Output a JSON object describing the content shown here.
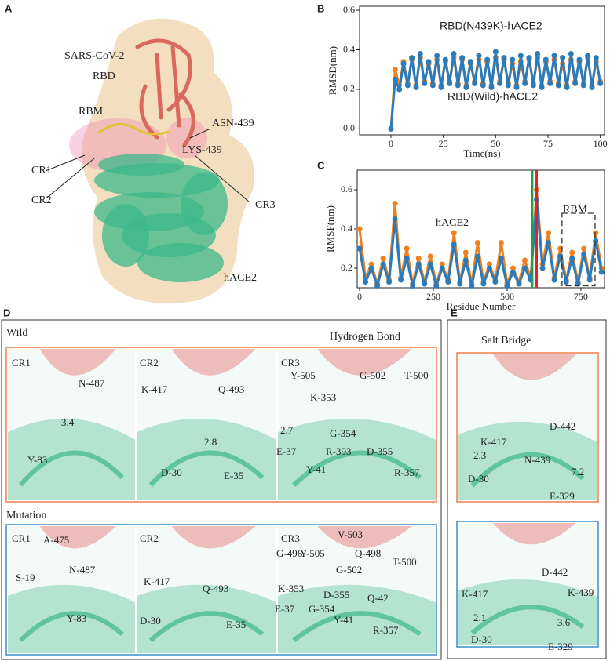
{
  "panel_letters": [
    "A",
    "B",
    "C",
    "D",
    "E"
  ],
  "panel_a": [
    "SARS-CoV-2",
    "RBD",
    "RBM",
    "ASN-439",
    "LYS-439",
    "CR1",
    "CR2",
    "CR3",
    "hACE2"
  ],
  "panel_d": {
    "wild_title": "Wild",
    "bond_title": "Hydrogen Bond",
    "mutation_title": "Mutation",
    "wild": [
      [
        "CR1",
        "N-487",
        "3.4",
        "Y-83"
      ],
      [
        "CR2",
        "K-417",
        "Q-493",
        "2.8",
        "D-30",
        "E-35"
      ],
      [
        "CR3",
        "Y-505",
        "G-502",
        "T-500",
        "K-353",
        "2.7",
        "G-354",
        "E-37",
        "R-393",
        "D-355",
        "Y-41",
        "R-357"
      ]
    ],
    "mutation": [
      [
        "CR1",
        "A-475",
        "N-487",
        "S-19",
        "Y-83"
      ],
      [
        "CR2",
        "K-417",
        "Q-493",
        "D-30",
        "E-35"
      ],
      [
        "CR3",
        "V-503",
        "G-496",
        "Y-505",
        "Q-498",
        "T-500",
        "G-502",
        "K-353",
        "D-355",
        "Q-42",
        "E-37",
        "G-354",
        "Y-41",
        "R-357"
      ]
    ]
  },
  "panel_e": {
    "title": "Salt Bridge",
    "wild": [
      "K-417",
      "D-442",
      "2.3",
      "N-439",
      "7.2",
      "D-30",
      "E-329"
    ],
    "mutation": [
      "D-442",
      "K-417",
      "K-439",
      "2.1",
      "3.6",
      "D-30",
      "E-329"
    ]
  },
  "chart_data": [
    {
      "type": "line",
      "xlabel": "Time(ns)",
      "ylabel": "RMSD(nm)",
      "xlim": [
        -15,
        102
      ],
      "ylim": [
        -0.03,
        0.62
      ],
      "xticks": [
        0,
        25,
        50,
        75,
        100
      ],
      "yticks": [
        {
          "value": 0,
          "label": "0.0"
        },
        0.2,
        0.4,
        0.6
      ],
      "x": [
        0,
        2,
        4,
        6,
        8,
        10,
        12,
        14,
        16,
        18,
        20,
        22,
        24,
        26,
        28,
        30,
        32,
        34,
        36,
        38,
        40,
        42,
        44,
        46,
        48,
        50,
        52,
        54,
        56,
        58,
        60,
        62,
        64,
        66,
        68,
        70,
        72,
        74,
        76,
        78,
        80,
        82,
        84,
        86,
        88,
        90,
        92,
        94,
        96,
        98,
        100
      ],
      "series": [
        {
          "name": "RBD(Wild)-hACE2",
          "color": "#f07f1e",
          "values": [
            0.0,
            0.3,
            0.22,
            0.34,
            0.23,
            0.35,
            0.22,
            0.36,
            0.24,
            0.33,
            0.23,
            0.35,
            0.22,
            0.34,
            0.24,
            0.36,
            0.23,
            0.35,
            0.22,
            0.33,
            0.24,
            0.35,
            0.23,
            0.34,
            0.22,
            0.36,
            0.24,
            0.35,
            0.23,
            0.33,
            0.22,
            0.34,
            0.24,
            0.35,
            0.23,
            0.36,
            0.22,
            0.34,
            0.24,
            0.35,
            0.23,
            0.33,
            0.22,
            0.35,
            0.24,
            0.34,
            0.23,
            0.36,
            0.22,
            0.34,
            0.24
          ]
        },
        {
          "name": "RBD(N439K)-hACE2",
          "color": "#2b7bba",
          "values": [
            0.0,
            0.25,
            0.2,
            0.33,
            0.22,
            0.36,
            0.21,
            0.38,
            0.23,
            0.34,
            0.22,
            0.37,
            0.21,
            0.35,
            0.23,
            0.38,
            0.22,
            0.36,
            0.21,
            0.34,
            0.23,
            0.37,
            0.22,
            0.35,
            0.21,
            0.39,
            0.23,
            0.36,
            0.22,
            0.35,
            0.21,
            0.37,
            0.23,
            0.36,
            0.22,
            0.38,
            0.21,
            0.35,
            0.23,
            0.37,
            0.22,
            0.36,
            0.21,
            0.38,
            0.23,
            0.35,
            0.22,
            0.37,
            0.21,
            0.36,
            0.23
          ]
        }
      ]
    },
    {
      "type": "line",
      "xlabel": "Residue Number",
      "ylabel": "RMSF(nm)",
      "xlim": [
        -8,
        830
      ],
      "ylim": [
        0.1,
        0.7
      ],
      "xticks": [
        0,
        250,
        500,
        750
      ],
      "yticks": [
        0.2,
        0.4,
        0.6
      ],
      "x": [
        0,
        20,
        40,
        60,
        80,
        100,
        120,
        140,
        160,
        180,
        200,
        220,
        240,
        260,
        280,
        300,
        320,
        340,
        360,
        380,
        400,
        420,
        440,
        460,
        480,
        500,
        520,
        540,
        560,
        580,
        600,
        620,
        640,
        660,
        680,
        700,
        720,
        740,
        760,
        780,
        800,
        820
      ],
      "series": [
        {
          "color": "#f07f1e",
          "values": [
            0.4,
            0.15,
            0.22,
            0.12,
            0.25,
            0.14,
            0.53,
            0.15,
            0.3,
            0.12,
            0.25,
            0.13,
            0.26,
            0.12,
            0.22,
            0.14,
            0.38,
            0.13,
            0.28,
            0.12,
            0.33,
            0.13,
            0.22,
            0.14,
            0.33,
            0.12,
            0.2,
            0.13,
            0.24,
            0.15,
            0.6,
            0.22,
            0.38,
            0.15,
            0.3,
            0.14,
            0.28,
            0.13,
            0.3,
            0.15,
            0.38,
            0.2
          ]
        },
        {
          "color": "#2b7bba",
          "values": [
            0.3,
            0.13,
            0.2,
            0.11,
            0.22,
            0.13,
            0.45,
            0.14,
            0.25,
            0.11,
            0.22,
            0.12,
            0.22,
            0.11,
            0.2,
            0.13,
            0.32,
            0.12,
            0.24,
            0.11,
            0.26,
            0.12,
            0.2,
            0.13,
            0.25,
            0.11,
            0.18,
            0.12,
            0.2,
            0.14,
            0.55,
            0.2,
            0.33,
            0.14,
            0.26,
            0.13,
            0.25,
            0.12,
            0.27,
            0.14,
            0.34,
            0.18
          ]
        }
      ],
      "vlines": [
        {
          "x": 585,
          "color": "#22a04a"
        },
        {
          "x": 600,
          "color": "#d62728"
        }
      ],
      "box": {
        "x": [
          686,
          798
        ],
        "y": [
          0.11,
          0.48
        ]
      },
      "annotations": [
        {
          "text": "hACE2",
          "color": "#22a04a"
        },
        {
          "text": "RBM",
          "color": "#f5a623"
        }
      ]
    }
  ]
}
